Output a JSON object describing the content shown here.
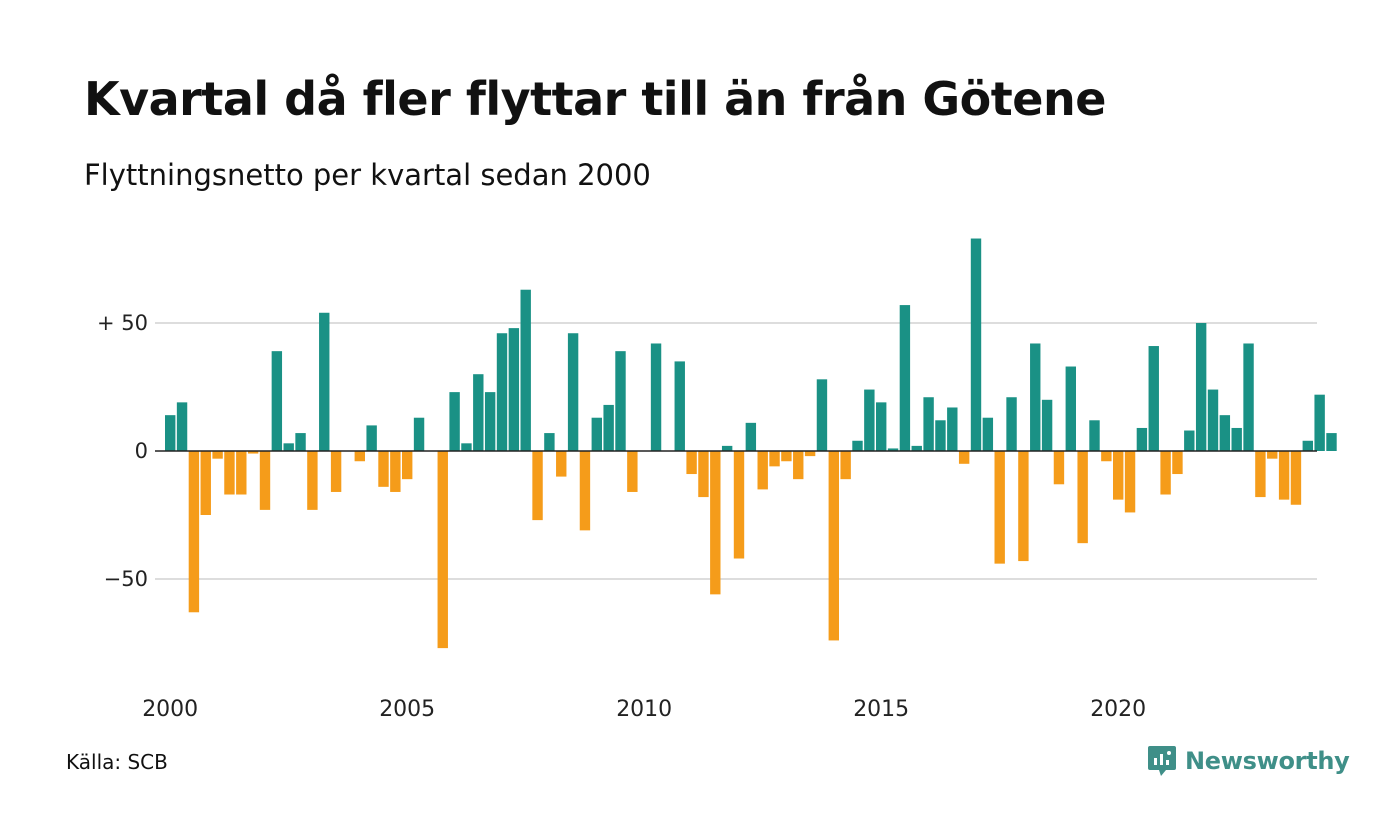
{
  "title": "Kvartal då fler flyttar till än från Götene",
  "subtitle": "Flyttningsnetto per kvartal sedan 2000",
  "source": "Källa: SCB",
  "brand": {
    "name": "Newsworthy",
    "icon": "newsworthy-logo-icon"
  },
  "colors": {
    "positive": "#1a9185",
    "negative": "#f59c1a",
    "grid": "#dddddd",
    "axis": "#222222"
  },
  "chart_data": {
    "type": "bar",
    "title": "Kvartal då fler flyttar till än från Götene",
    "subtitle": "Flyttningsnetto per kvartal sedan 2000",
    "xlabel": "",
    "ylabel": "",
    "x_start": "2000 Q1",
    "x_ticks": [
      "2000",
      "2005",
      "2010",
      "2015",
      "2020"
    ],
    "y_ticks": [
      {
        "value": 50,
        "label": "+ 50"
      },
      {
        "value": 0,
        "label": "0"
      },
      {
        "value": -50,
        "label": "−50"
      }
    ],
    "ylim": [
      -85,
      85
    ],
    "grid": true,
    "legend": "none",
    "values": [
      14,
      19,
      -63,
      -25,
      -3,
      -17,
      -17,
      -1,
      -23,
      39,
      3,
      7,
      -23,
      54,
      -16,
      0,
      -4,
      10,
      -14,
      -16,
      -11,
      13,
      0,
      -77,
      23,
      3,
      30,
      23,
      46,
      48,
      63,
      -27,
      7,
      -10,
      46,
      -31,
      13,
      18,
      39,
      -16,
      0,
      42,
      0,
      35,
      -9,
      -18,
      -56,
      2,
      -42,
      11,
      -15,
      -6,
      -4,
      -11,
      -2,
      28,
      -74,
      -11,
      4,
      24,
      19,
      1,
      57,
      2,
      21,
      12,
      17,
      -5,
      83,
      13,
      -44,
      21,
      -43,
      42,
      20,
      -13,
      33,
      -36,
      12,
      -4,
      -19,
      -24,
      9,
      41,
      -17,
      -9,
      8,
      50,
      24,
      14,
      9,
      42,
      -18,
      -3,
      -19,
      -21,
      4,
      22,
      7
    ]
  }
}
